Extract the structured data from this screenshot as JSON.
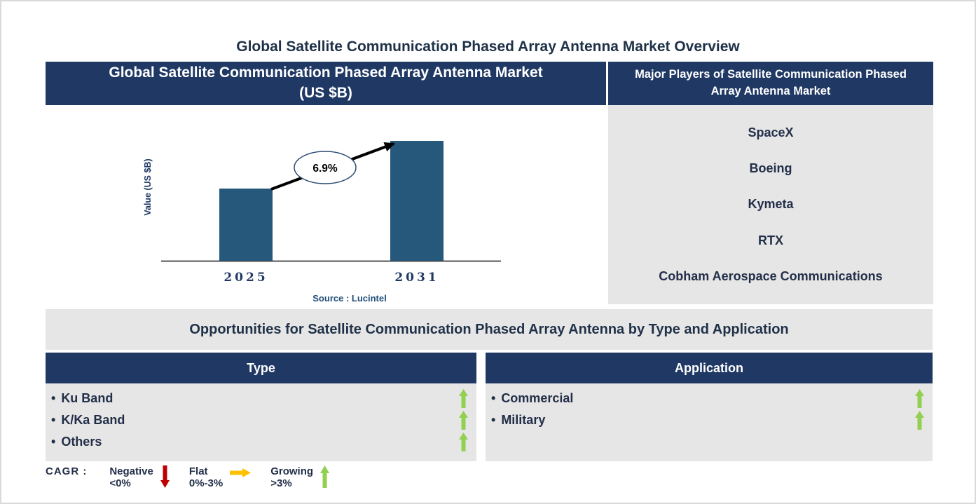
{
  "page": {
    "title": "Global Satellite Communication Phased Array Antenna Market Overview",
    "bullet": "•"
  },
  "market_chart": {
    "header": "Global Satellite Communication Phased Array Antenna Market (US $B)"
  },
  "chart_data": {
    "type": "bar",
    "title": "Global Satellite Communication Phased Array Antenna Market (US $B)",
    "categories": [
      "2025",
      "2031"
    ],
    "values": [
      1.0,
      1.66
    ],
    "units": "relative height (value axis unlabeled)",
    "ylabel": "Value (US $B)",
    "xlabel": "",
    "ylim": [
      0,
      2
    ],
    "grid": false,
    "legend_position": "none",
    "cagr_label": "6.9%",
    "source": "Source : Lucintel",
    "bar_color": "#26587C"
  },
  "players": {
    "header": "Major Players of Satellite Communication Phased Array Antenna Market",
    "companies": [
      "SpaceX",
      "Boeing",
      "Kymeta",
      "RTX",
      "Cobham Aerospace Communications"
    ]
  },
  "opportunities": {
    "title": "Opportunities for Satellite Communication Phased Array Antenna by Type and Application",
    "type_table": {
      "header": "Type",
      "items": [
        {
          "label": "Ku Band",
          "trend": "growing"
        },
        {
          "label": "K/Ka Band",
          "trend": "growing"
        },
        {
          "label": "Others",
          "trend": "growing"
        }
      ]
    },
    "application_table": {
      "header": "Application",
      "items": [
        {
          "label": "Commercial",
          "trend": "growing"
        },
        {
          "label": "Military",
          "trend": "growing"
        }
      ]
    }
  },
  "legend": {
    "title": "CAGR :",
    "entries": [
      {
        "label": "Negative",
        "range": "<0%",
        "direction": "down",
        "color": "#C00000"
      },
      {
        "label": "Flat",
        "range": "0%-3%",
        "direction": "right",
        "color": "#FFC000"
      },
      {
        "label": "Growing",
        "range": ">3%",
        "direction": "up",
        "color": "#92D050"
      }
    ]
  },
  "colors": {
    "navy": "#1F3864",
    "panel_gray": "#E7E6E6",
    "growing": "#92D050",
    "bar": "#26587C"
  }
}
